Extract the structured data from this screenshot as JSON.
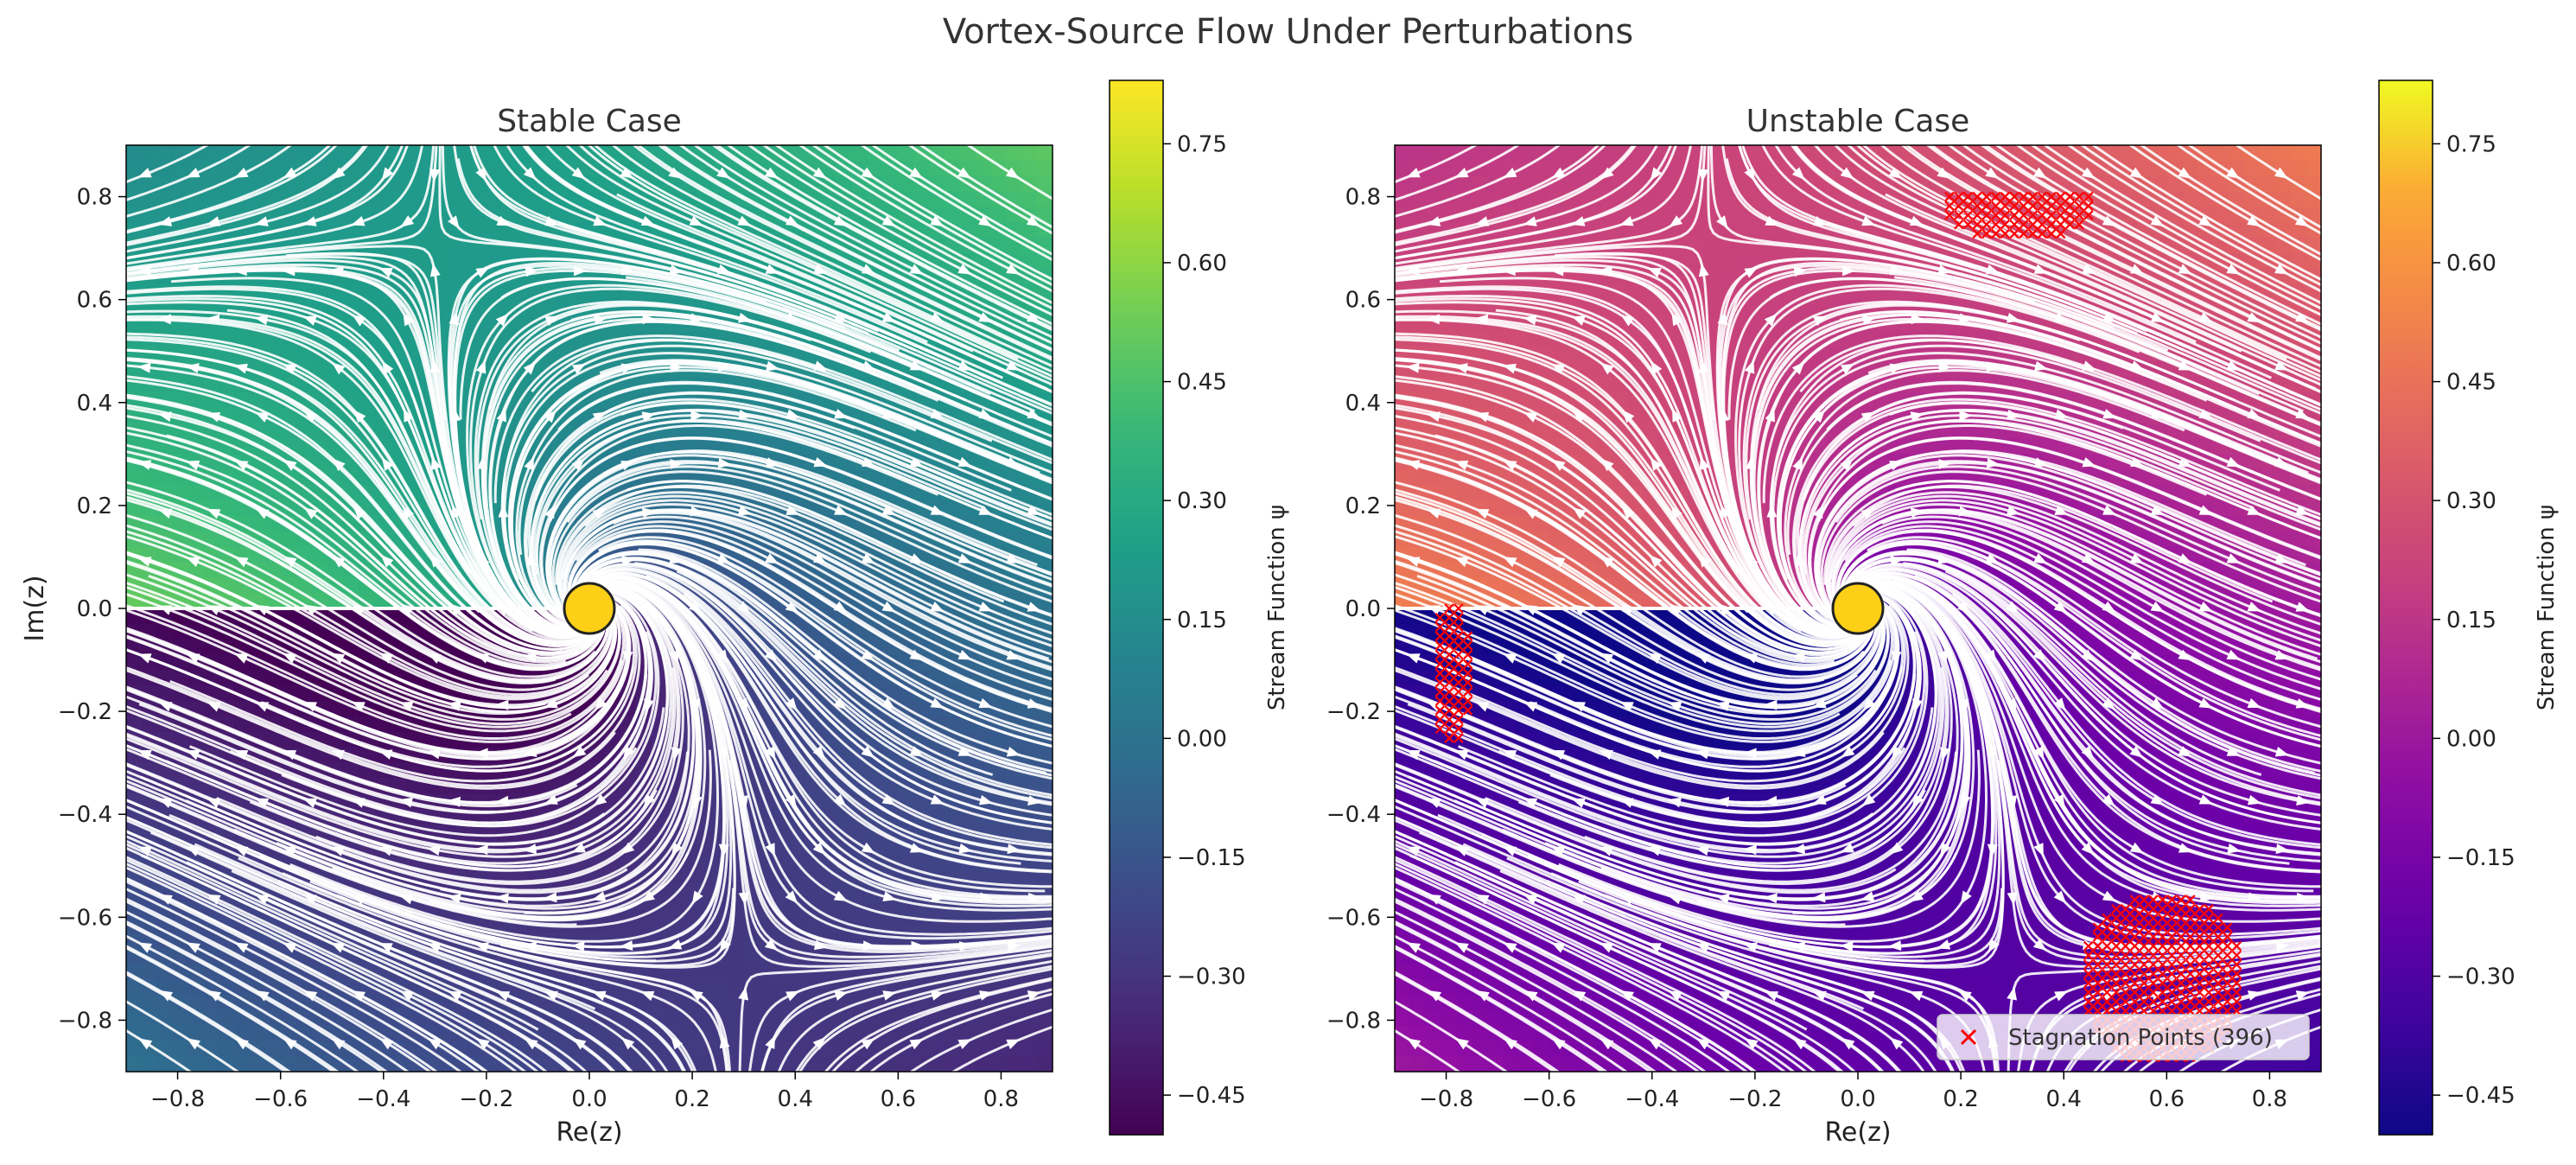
{
  "figure": {
    "suptitle": "Vortex-Source Flow Under Perturbations"
  },
  "chart_data": [
    {
      "type": "streamplot",
      "title": "Stable Case",
      "xlabel": "Re(z)",
      "ylabel": "Im(z)",
      "xlim": [
        -0.9,
        0.9
      ],
      "ylim": [
        -0.9,
        0.9
      ],
      "xticks": [
        -0.8,
        -0.6,
        -0.4,
        -0.2,
        0.0,
        0.2,
        0.4,
        0.6,
        0.8
      ],
      "yticks": [
        -0.8,
        -0.6,
        -0.4,
        -0.2,
        0.0,
        0.2,
        0.4,
        0.6,
        0.8
      ],
      "xtick_labels": [
        "−0.8",
        "−0.6",
        "−0.4",
        "−0.2",
        "0.0",
        "0.2",
        "0.4",
        "0.6",
        "0.8"
      ],
      "ytick_labels": [
        "−0.8",
        "−0.6",
        "−0.4",
        "−0.2",
        "0.0",
        "0.2",
        "0.4",
        "0.6",
        "0.8"
      ],
      "colormap": "viridis",
      "colorbar": {
        "label": "Stream Function ψ",
        "range": [
          -0.5,
          0.83
        ],
        "ticks": [
          -0.45,
          -0.3,
          -0.15,
          0.0,
          0.15,
          0.3,
          0.45,
          0.6,
          0.75
        ],
        "tick_labels": [
          "−0.45",
          "−0.30",
          "−0.15",
          "0.00",
          "0.15",
          "0.30",
          "0.45",
          "0.60",
          "0.75"
        ]
      },
      "singularity": {
        "x": 0.0,
        "y": 0.0,
        "color": "#fdd017"
      },
      "streamline_color": "#ffffff",
      "grid": false
    },
    {
      "type": "streamplot",
      "title": "Unstable Case",
      "xlabel": "Re(z)",
      "ylabel": "",
      "xlim": [
        -0.9,
        0.9
      ],
      "ylim": [
        -0.9,
        0.9
      ],
      "xticks": [
        -0.8,
        -0.6,
        -0.4,
        -0.2,
        0.0,
        0.2,
        0.4,
        0.6,
        0.8
      ],
      "yticks": [
        -0.8,
        -0.6,
        -0.4,
        -0.2,
        0.0,
        0.2,
        0.4,
        0.6,
        0.8
      ],
      "xtick_labels": [
        "−0.8",
        "−0.6",
        "−0.4",
        "−0.2",
        "0.0",
        "0.2",
        "0.4",
        "0.6",
        "0.8"
      ],
      "ytick_labels": [
        "−0.8",
        "−0.6",
        "−0.4",
        "−0.2",
        "0.0",
        "0.2",
        "0.4",
        "0.6",
        "0.8"
      ],
      "colormap": "plasma",
      "colorbar": {
        "label": "Stream Function ψ",
        "range": [
          -0.5,
          0.83
        ],
        "ticks": [
          -0.45,
          -0.3,
          -0.15,
          0.0,
          0.15,
          0.3,
          0.45,
          0.6,
          0.75
        ],
        "tick_labels": [
          "−0.45",
          "−0.30",
          "−0.15",
          "0.00",
          "0.15",
          "0.30",
          "0.45",
          "0.60",
          "0.75"
        ]
      },
      "singularity": {
        "x": 0.0,
        "y": 0.0,
        "color": "#fdd017"
      },
      "streamline_color": "#ffffff",
      "stagnation_points": {
        "label": "Stagnation Points (396)",
        "count": 396,
        "color": "#ff0000",
        "marker": "x",
        "regions": [
          {
            "cx": 0.31,
            "cy": 0.79,
            "rx": 0.15,
            "ry": 0.08,
            "shape": "half-lens"
          },
          {
            "cx": 0.59,
            "cy": -0.72,
            "rx": 0.16,
            "ry": 0.17,
            "shape": "blob"
          },
          {
            "cx": -0.79,
            "cy": -0.13,
            "rx": 0.04,
            "ry": 0.14,
            "shape": "sliver"
          }
        ]
      },
      "legend": {
        "location": "lower right"
      },
      "grid": false
    }
  ]
}
